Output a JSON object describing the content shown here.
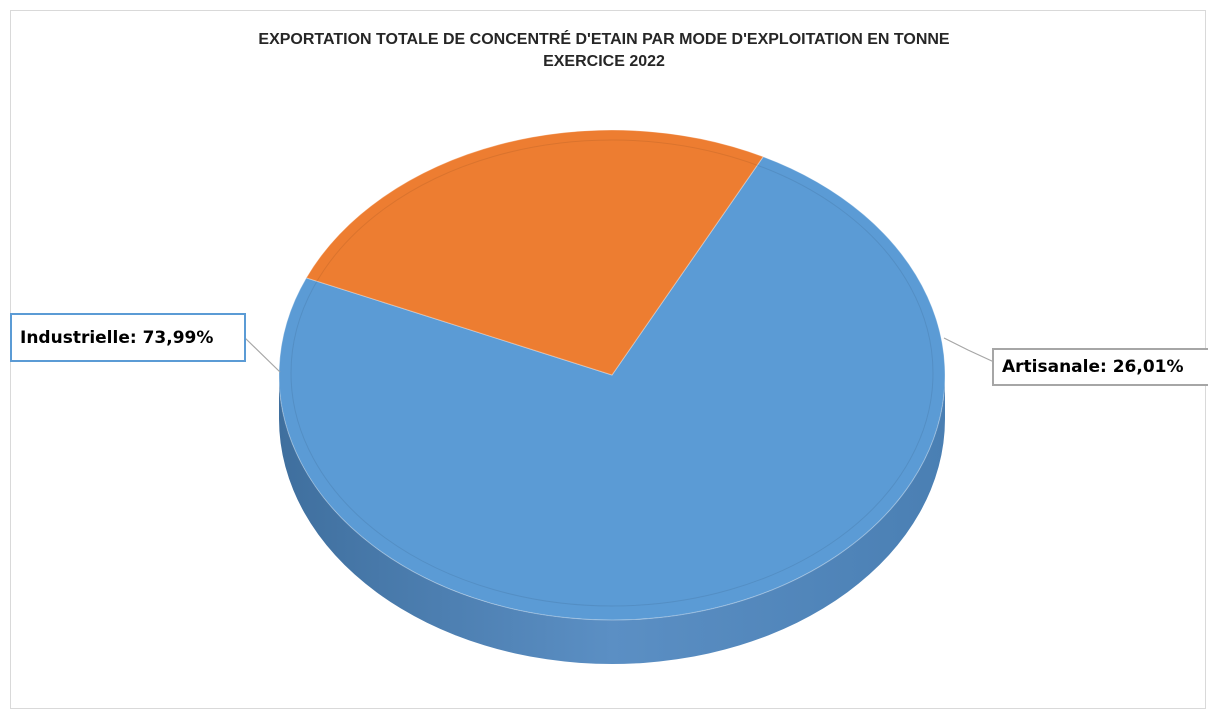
{
  "chart_data": {
    "type": "pie",
    "title": "EXPORTATION TOTALE DE CONCENTRÉ D'ETAIN PAR MODE D'EXPLOITATION EN TONNE",
    "subtitle": "EXERCICE 2022",
    "style": "3d",
    "slices": [
      {
        "name": "Industrielle",
        "value": 73.99,
        "label": "Industrielle: 73,99%",
        "color": "#5b9bd5"
      },
      {
        "name": "Artisanale",
        "value": 26.01,
        "label": "Artisanale: 26,01%",
        "color": "#ed7d31"
      }
    ],
    "colors": {
      "industrielle_side": "#4a80b5",
      "artisanale_side": "#c8662a",
      "leader": "#a6a6a6"
    }
  }
}
